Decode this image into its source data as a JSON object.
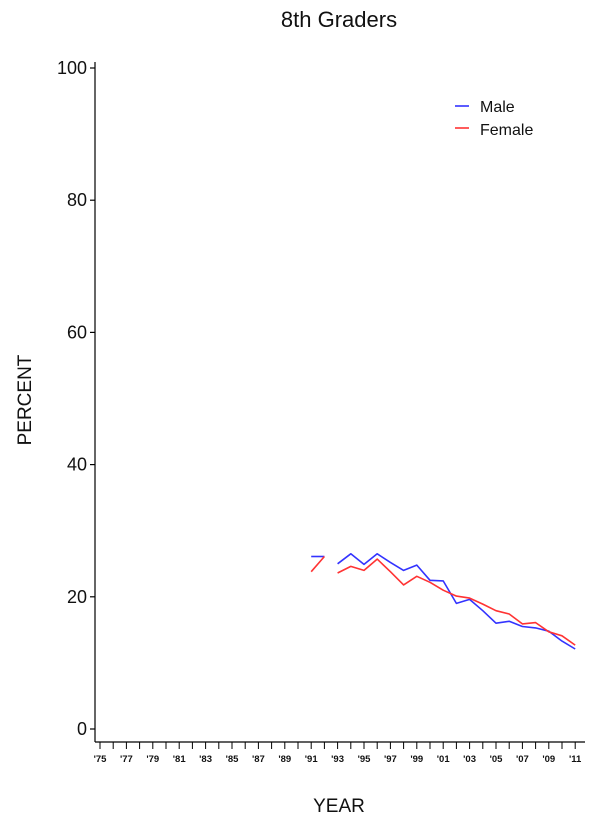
{
  "chart_data": {
    "type": "line",
    "title": "8th Graders",
    "xlabel": "YEAR",
    "ylabel": "PERCENT",
    "xlim": [
      1975,
      2011
    ],
    "ylim": [
      0,
      100
    ],
    "y_ticks": [
      0,
      20,
      40,
      60,
      80,
      100
    ],
    "x_tick_labels": [
      "'75",
      "'77",
      "'79",
      "'81",
      "'83",
      "'85",
      "'87",
      "'89",
      "'91",
      "'93",
      "'95",
      "'97",
      "'99",
      "'01",
      "'03",
      "'05",
      "'07",
      "'09",
      "'11"
    ],
    "grid": false,
    "legend_position": "top-right",
    "series": [
      {
        "name": "Male",
        "color": "#3333ff",
        "segments": [
          {
            "x": [
              1991,
              1992
            ],
            "y": [
              26.1,
              26.1
            ]
          },
          {
            "x": [
              1993,
              1994,
              1995,
              1996,
              1997,
              1998,
              1999,
              2000,
              2001,
              2002,
              2003,
              2004,
              2005,
              2006,
              2007,
              2008,
              2009,
              2010,
              2011
            ],
            "y": [
              25.0,
              26.5,
              24.9,
              26.5,
              25.2,
              24.0,
              24.8,
              22.5,
              22.4,
              19.0,
              19.6,
              17.9,
              16.0,
              16.3,
              15.5,
              15.3,
              14.8,
              13.3,
              12.1
            ]
          }
        ]
      },
      {
        "name": "Female",
        "color": "#ff3333",
        "segments": [
          {
            "x": [
              1991,
              1992
            ],
            "y": [
              23.8,
              26.1
            ]
          },
          {
            "x": [
              1993,
              1994,
              1995,
              1996,
              1997,
              1998,
              1999,
              2000,
              2001,
              2002,
              2003,
              2004,
              2005,
              2006,
              2007,
              2008,
              2009,
              2010,
              2011
            ],
            "y": [
              23.6,
              24.6,
              24.0,
              25.7,
              23.8,
              21.8,
              23.1,
              22.2,
              21.0,
              20.1,
              19.8,
              18.9,
              17.9,
              17.4,
              15.9,
              16.1,
              14.7,
              14.1,
              12.7
            ]
          }
        ]
      }
    ]
  }
}
